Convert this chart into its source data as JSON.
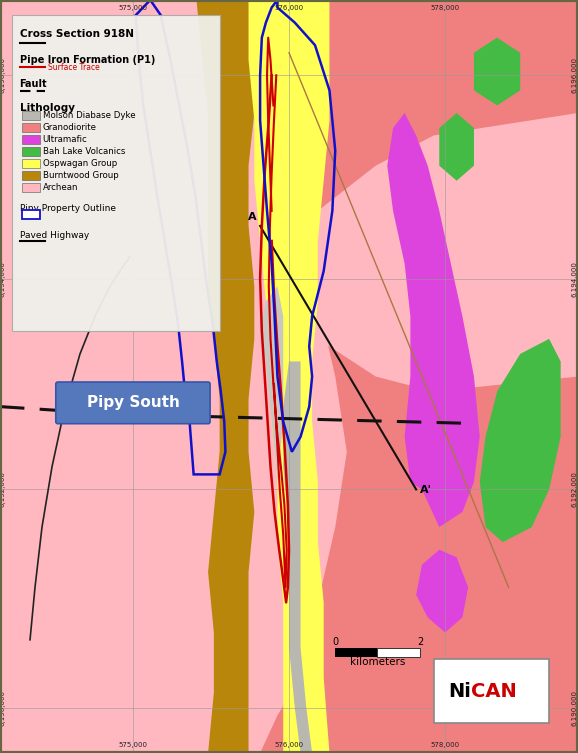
{
  "legend_title": "Cross Section 918N",
  "pipe_iron_label": "Pipe Iron Formation (P1)",
  "pipe_iron_sub": "Surface Trace",
  "fault_label": "Fault",
  "lithology_label": "Lithology",
  "lithology_items": [
    {
      "color": "#b8b8b0",
      "label": "Molson Diabase Dyke"
    },
    {
      "color": "#f08080",
      "label": "Granodiorite"
    },
    {
      "color": "#dd44dd",
      "label": "Ultramafic"
    },
    {
      "color": "#44bb44",
      "label": "Bah Lake Volcanics"
    },
    {
      "color": "#ffff55",
      "label": "Ospwagan Group"
    },
    {
      "color": "#b8860b",
      "label": "Burntwood Group"
    },
    {
      "color": "#ffb8c0",
      "label": "Archean"
    }
  ],
  "pipy_label": "Pipy Property Outline",
  "highway_label": "Paved Highway",
  "text_pipy_south": "Pipy South",
  "scale_label": "kilometers",
  "archean_color": "#ffb8c0",
  "granodiorite_color": "#f08080",
  "ultramafic_color": "#dd44dd",
  "volcanics_color": "#44bb44",
  "ospwagan_color": "#ffff55",
  "burntwood_color": "#b8860b",
  "diabase_color": "#b8b8b0",
  "fault_color": "#111111",
  "pipe_outline_color": "#cc0000",
  "property_outline_color": "#1111cc",
  "grid_color": "#999999",
  "border_color": "#888866"
}
